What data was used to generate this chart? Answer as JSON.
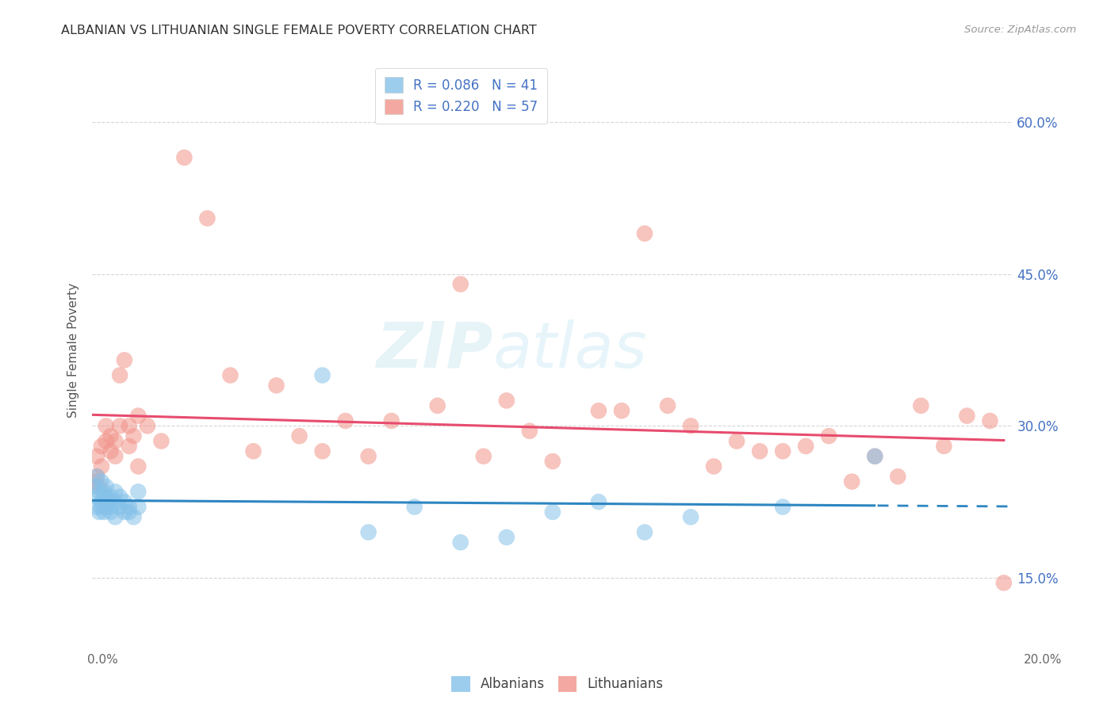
{
  "title": "ALBANIAN VS LITHUANIAN SINGLE FEMALE POVERTY CORRELATION CHART",
  "source": "Source: ZipAtlas.com",
  "ylabel": "Single Female Poverty",
  "legend_label1": "Albanians",
  "legend_label2": "Lithuanians",
  "r1": 0.086,
  "n1": 41,
  "r2": 0.22,
  "n2": 57,
  "color_albanian": "#85C1E9",
  "color_lithuanian": "#F1948A",
  "color_albanian_line": "#2E86C1",
  "color_lithuanian_line": "#E74C6E",
  "background": "#FFFFFF",
  "grid_color": "#CCCCCC",
  "watermark_zip": "ZIP",
  "watermark_atlas": "atlas",
  "xlim": [
    0.0,
    0.2
  ],
  "ylim": [
    0.09,
    0.66
  ],
  "yticks": [
    0.15,
    0.3,
    0.45,
    0.6
  ],
  "ytick_labels": [
    "15.0%",
    "30.0%",
    "45.0%",
    "60.0%"
  ],
  "albanian_x": [
    0.0005,
    0.001,
    0.001,
    0.001,
    0.0015,
    0.0015,
    0.002,
    0.002,
    0.002,
    0.0025,
    0.0025,
    0.003,
    0.003,
    0.003,
    0.0035,
    0.004,
    0.004,
    0.004,
    0.005,
    0.005,
    0.005,
    0.006,
    0.006,
    0.007,
    0.007,
    0.008,
    0.008,
    0.009,
    0.01,
    0.01,
    0.05,
    0.06,
    0.07,
    0.08,
    0.09,
    0.1,
    0.11,
    0.12,
    0.13,
    0.15,
    0.17
  ],
  "albanian_y": [
    0.24,
    0.23,
    0.22,
    0.25,
    0.235,
    0.215,
    0.225,
    0.245,
    0.22,
    0.235,
    0.215,
    0.23,
    0.22,
    0.24,
    0.225,
    0.22,
    0.23,
    0.215,
    0.225,
    0.235,
    0.21,
    0.22,
    0.23,
    0.215,
    0.225,
    0.215,
    0.22,
    0.21,
    0.22,
    0.235,
    0.35,
    0.195,
    0.22,
    0.185,
    0.19,
    0.215,
    0.225,
    0.195,
    0.21,
    0.22,
    0.27
  ],
  "lithuanian_x": [
    0.0005,
    0.001,
    0.001,
    0.0015,
    0.002,
    0.002,
    0.003,
    0.003,
    0.004,
    0.004,
    0.005,
    0.005,
    0.006,
    0.006,
    0.007,
    0.008,
    0.008,
    0.009,
    0.01,
    0.01,
    0.012,
    0.015,
    0.02,
    0.025,
    0.03,
    0.035,
    0.04,
    0.045,
    0.05,
    0.055,
    0.06,
    0.065,
    0.075,
    0.08,
    0.085,
    0.09,
    0.095,
    0.1,
    0.11,
    0.115,
    0.12,
    0.125,
    0.13,
    0.135,
    0.14,
    0.145,
    0.15,
    0.155,
    0.16,
    0.165,
    0.17,
    0.175,
    0.18,
    0.185,
    0.19,
    0.195,
    0.198
  ],
  "lithuanian_y": [
    0.245,
    0.25,
    0.27,
    0.24,
    0.26,
    0.28,
    0.285,
    0.3,
    0.275,
    0.29,
    0.27,
    0.285,
    0.3,
    0.35,
    0.365,
    0.28,
    0.3,
    0.29,
    0.31,
    0.26,
    0.3,
    0.285,
    0.565,
    0.505,
    0.35,
    0.275,
    0.34,
    0.29,
    0.275,
    0.305,
    0.27,
    0.305,
    0.32,
    0.44,
    0.27,
    0.325,
    0.295,
    0.265,
    0.315,
    0.315,
    0.49,
    0.32,
    0.3,
    0.26,
    0.285,
    0.275,
    0.275,
    0.28,
    0.29,
    0.245,
    0.27,
    0.25,
    0.32,
    0.28,
    0.31,
    0.305,
    0.145
  ]
}
